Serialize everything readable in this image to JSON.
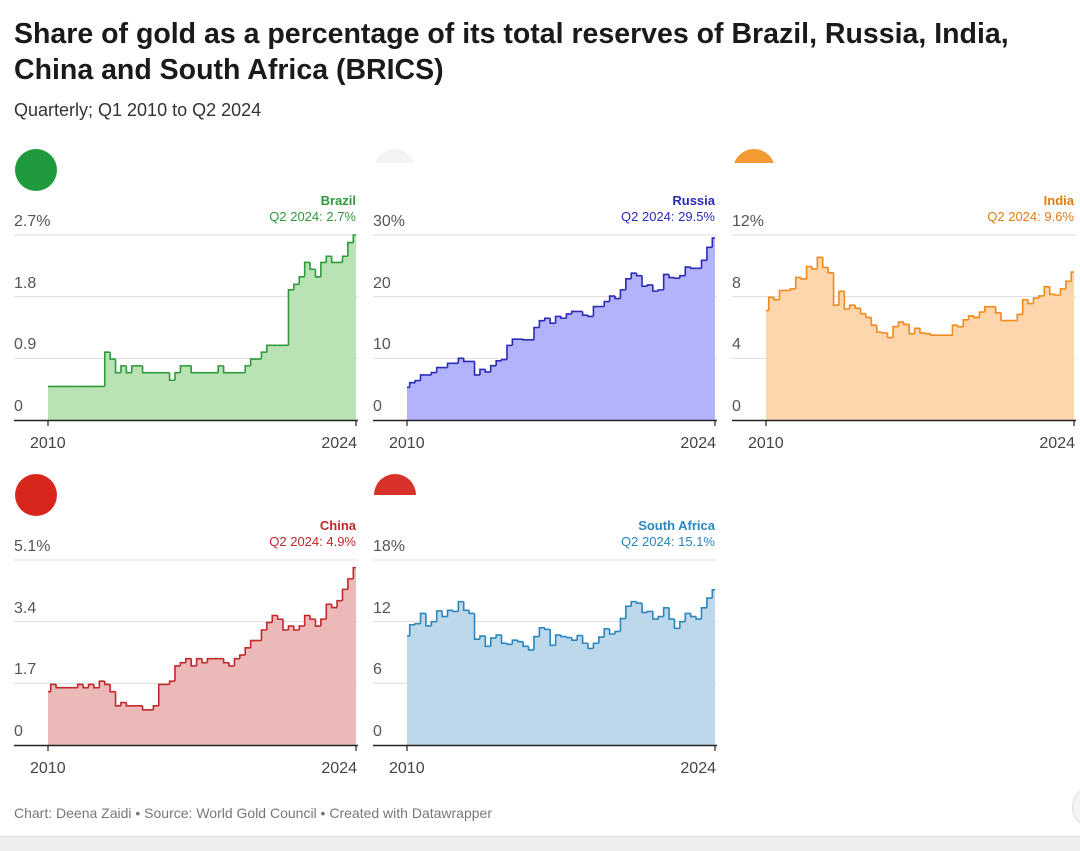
{
  "title": "Share of gold as a percentage of its total reserves of Brazil, Russia, India, China and South Africa (BRICS)",
  "subtitle": "Quarterly; Q1 2010 to Q2 2024",
  "footer": "Chart: Deena Zaidi • Source: World Gold Council • Created with Datawrapper",
  "chart_data": [
    {
      "type": "area",
      "name": "Brazil",
      "flag": "brazil-flag",
      "color": "#2e9a3a",
      "fill": "#b9e2b5",
      "label": "Q2 2024: 2.7%",
      "ylim": [
        0,
        2.7
      ],
      "yticks": [
        "0",
        "0.9",
        "1.8",
        "2.7%"
      ],
      "ytick_values": [
        0,
        0.9,
        1.8,
        2.7
      ],
      "xticks": [
        "2010",
        "2024"
      ],
      "grid": true,
      "values": [
        0.49,
        0.49,
        0.49,
        0.49,
        0.49,
        0.49,
        0.49,
        0.49,
        0.49,
        0.49,
        0.49,
        0.99,
        0.89,
        0.69,
        0.79,
        0.69,
        0.79,
        0.79,
        0.69,
        0.69,
        0.69,
        0.69,
        0.69,
        0.58,
        0.69,
        0.79,
        0.79,
        0.69,
        0.69,
        0.69,
        0.69,
        0.69,
        0.79,
        0.69,
        0.69,
        0.69,
        0.69,
        0.79,
        0.89,
        0.89,
        0.99,
        1.09,
        1.09,
        1.09,
        1.09,
        1.9,
        1.98,
        2.09,
        2.3,
        2.2,
        2.09,
        2.3,
        2.39,
        2.3,
        2.3,
        2.39,
        2.59,
        2.7
      ]
    },
    {
      "type": "area",
      "name": "Russia",
      "flag": "russia-flag",
      "color": "#2a2ab8",
      "fill": "#b3b3fb",
      "label": "Q2 2024: 29.5%",
      "ylim": [
        0,
        30
      ],
      "yticks": [
        "0",
        "10",
        "20",
        "30%"
      ],
      "ytick_values": [
        0,
        10,
        20,
        30
      ],
      "xticks": [
        "2010",
        "2024"
      ],
      "grid": true,
      "values": [
        5.3,
        6.05,
        6.4,
        7.3,
        7.3,
        7.7,
        8.5,
        8.5,
        9.2,
        9.2,
        10,
        9.5,
        9.5,
        7.3,
        8.2,
        7.8,
        8.8,
        9.6,
        9.8,
        12.1,
        13.1,
        13.1,
        13,
        13,
        15,
        16.1,
        16.5,
        15.7,
        16.8,
        16.5,
        17.2,
        17.6,
        17.6,
        17,
        16.8,
        18.4,
        18.4,
        19.2,
        20.1,
        19.7,
        21.1,
        22.9,
        23.8,
        23.4,
        21.7,
        21.9,
        20.9,
        21.1,
        23.6,
        23.1,
        23,
        23.4,
        24.8,
        24.6,
        24.6,
        25.9,
        28,
        29.5
      ]
    },
    {
      "type": "area",
      "name": "India",
      "flag": "india-flag",
      "color": "#f08a1c",
      "label_color": "#e07b10",
      "fill": "#fdd6ae",
      "label": "Q2 2024: 9.6%",
      "ylim": [
        0,
        12
      ],
      "yticks": [
        "0",
        "4",
        "8",
        "12%"
      ],
      "ytick_values": [
        0,
        4,
        8,
        12
      ],
      "xticks": [
        "2010",
        "2024"
      ],
      "grid": true,
      "values": [
        7.1,
        7.96,
        7.8,
        8.4,
        8.4,
        8.5,
        9.25,
        9.15,
        9.95,
        9.8,
        10.55,
        9.9,
        9.55,
        7.45,
        8.35,
        7.2,
        7.45,
        7.25,
        6.9,
        6.65,
        6.15,
        5.7,
        5.65,
        5.35,
        6.05,
        6.35,
        6.2,
        5.6,
        5.95,
        5.65,
        5.6,
        5.5,
        5.5,
        5.5,
        5.5,
        6.15,
        6.05,
        6.5,
        6.75,
        6.65,
        7,
        7.35,
        7.35,
        6.95,
        6.45,
        6.45,
        6.45,
        6.85,
        7.8,
        7.55,
        7.9,
        8.05,
        8.65,
        8.15,
        8.1,
        8.5,
        9,
        9.6
      ]
    },
    {
      "type": "area",
      "name": "China",
      "flag": "china-flag",
      "color": "#c0282c",
      "fill": "#ecb9b9",
      "label": "Q2 2024: 4.9%",
      "ylim": [
        0,
        5.1
      ],
      "yticks": [
        "0",
        "1.7",
        "3.4",
        "5.1%"
      ],
      "ytick_values": [
        0,
        1.7,
        3.4,
        5.1
      ],
      "xticks": [
        "2010",
        "2024"
      ],
      "grid": true,
      "values": [
        1.47,
        1.67,
        1.58,
        1.58,
        1.58,
        1.58,
        1.67,
        1.58,
        1.67,
        1.58,
        1.76,
        1.67,
        1.47,
        1.08,
        1.17,
        1.08,
        1.08,
        1.08,
        0.97,
        0.97,
        1.08,
        1.67,
        1.67,
        1.76,
        2.18,
        2.27,
        2.38,
        2.18,
        2.38,
        2.27,
        2.38,
        2.38,
        2.38,
        2.27,
        2.18,
        2.38,
        2.48,
        2.68,
        2.88,
        2.88,
        3.17,
        3.38,
        3.57,
        3.47,
        3.17,
        3.28,
        3.17,
        3.28,
        3.57,
        3.47,
        3.28,
        3.47,
        3.88,
        3.79,
        3.98,
        4.29,
        4.58,
        4.89
      ]
    },
    {
      "type": "area",
      "name": "South Africa",
      "flag": "south-africa-flag",
      "color": "#2a86bd",
      "fill": "#bcd8ea",
      "label": "Q2 2024: 15.1%",
      "ylim": [
        0,
        18
      ],
      "yticks": [
        "0",
        "6",
        "12",
        "18%"
      ],
      "ytick_values": [
        0,
        6,
        12,
        18
      ],
      "xticks": [
        "2010",
        "2024"
      ],
      "grid": true,
      "values": [
        10.6,
        11.7,
        11.8,
        12.8,
        11.6,
        12,
        13.05,
        12.5,
        13.1,
        13,
        13.95,
        13.1,
        12.8,
        10.3,
        10.6,
        9.6,
        10.4,
        10.7,
        9.9,
        9.8,
        10.2,
        10.05,
        9.6,
        9.25,
        10.55,
        11.4,
        11.25,
        9.7,
        10.7,
        10.55,
        10.45,
        10.2,
        10.65,
        9.9,
        9.4,
        9.9,
        10.5,
        11.3,
        10.8,
        11.05,
        12.3,
        13.5,
        13.95,
        13.8,
        12.9,
        13,
        12.25,
        12.5,
        13.35,
        12.25,
        11.35,
        12,
        12.8,
        12.5,
        12.25,
        13.35,
        14.3,
        15.1
      ]
    }
  ]
}
